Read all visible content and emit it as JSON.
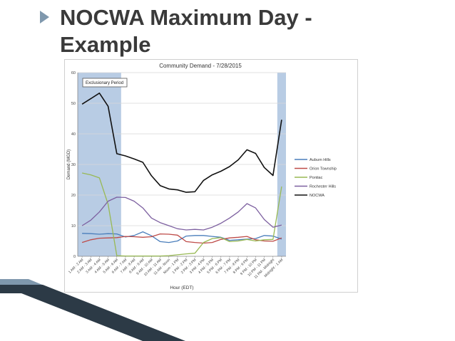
{
  "slide": {
    "title_line1": "NOCWA Maximum Day -",
    "title_line2": "Example"
  },
  "chart_data": {
    "type": "line",
    "title": "Community Demand - 7/28/2015",
    "xlabel": "Hour (EDT)",
    "ylabel": "Demand (MGD)",
    "ylim": [
      0,
      60
    ],
    "yticks": [
      0,
      10,
      20,
      30,
      40,
      50,
      60
    ],
    "grid": true,
    "legend_position": "right",
    "annotation": "Exclusionary Period",
    "shaded_periods": [
      [
        0,
        5
      ],
      [
        23,
        24
      ]
    ],
    "categories": [
      "1 AM - 2 AM",
      "2 AM - 3 AM",
      "3 AM - 4 AM",
      "4 AM - 5 AM",
      "5 AM - 6 AM",
      "6 AM - 7 AM",
      "7 AM - 8 AM",
      "8 AM - 9 AM",
      "9 AM - 10 AM",
      "10 AM - 11 AM",
      "11 AM - Noon",
      "Noon - 1 PM",
      "1 PM - 2 PM",
      "2 PM - 3 PM",
      "3 PM - 4 PM",
      "4 PM - 5 PM",
      "5 PM - 6 PM",
      "6 PM - 7 PM",
      "7 PM - 8 PM",
      "8 PM - 9 PM",
      "9 PM - 10 PM",
      "10 PM - 11 PM",
      "11 PM - Midnight",
      "Midnight - 1 AM"
    ],
    "series": [
      {
        "name": "Auburn Hills",
        "color": "#4a7ebb",
        "values": [
          7.5,
          7.4,
          7.2,
          7.4,
          7.3,
          6.3,
          6.8,
          8.0,
          6.7,
          4.8,
          4.5,
          5.0,
          6.6,
          6.8,
          6.8,
          6.5,
          6.2,
          5.2,
          5.4,
          5.6,
          5.8,
          6.8,
          6.6,
          5.6
        ]
      },
      {
        "name": "Orion Township",
        "color": "#be4b48",
        "values": [
          4.5,
          5.4,
          5.9,
          6.0,
          6.1,
          6.5,
          6.4,
          6.2,
          6.4,
          7.3,
          7.2,
          6.9,
          4.8,
          4.5,
          4.3,
          4.5,
          5.5,
          6.0,
          6.2,
          6.5,
          5.4,
          5.0,
          4.9,
          6.0
        ]
      },
      {
        "name": "Pontiac",
        "color": "#98b954",
        "values": [
          27.2,
          26.6,
          25.6,
          17.0,
          0.2,
          0.1,
          0.1,
          0.1,
          0.1,
          0.1,
          0.2,
          0.5,
          0.8,
          1.0,
          4.5,
          5.8,
          6.1,
          4.8,
          5.0,
          5.5,
          5.0,
          5.4,
          5.5,
          22.8
        ]
      },
      {
        "name": "Rochester Hills",
        "color": "#7d60a0",
        "values": [
          10.0,
          11.8,
          14.5,
          18.0,
          19.3,
          19.2,
          18.0,
          15.8,
          12.5,
          11.0,
          10.0,
          9.0,
          8.6,
          8.8,
          8.6,
          9.5,
          10.8,
          12.5,
          14.5,
          17.2,
          15.8,
          12.0,
          9.5,
          10.2
        ]
      },
      {
        "name": "NOCWA",
        "color": "#111111",
        "values": [
          49.7,
          51.5,
          53.3,
          49.0,
          33.5,
          32.8,
          31.8,
          30.7,
          26.3,
          23.1,
          22.0,
          21.7,
          20.9,
          21.1,
          24.8,
          26.6,
          27.8,
          29.3,
          31.5,
          34.8,
          33.6,
          29.0,
          26.4,
          44.6
        ]
      }
    ]
  }
}
